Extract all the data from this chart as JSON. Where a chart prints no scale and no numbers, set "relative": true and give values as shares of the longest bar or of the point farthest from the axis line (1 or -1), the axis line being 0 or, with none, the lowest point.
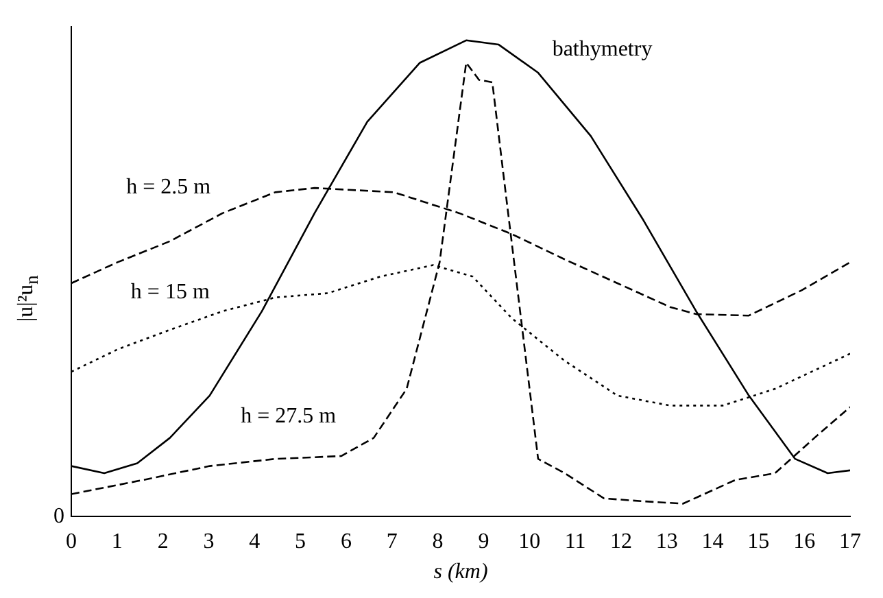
{
  "chart_data": {
    "type": "line",
    "relative": true,
    "xlabel": "s (km)",
    "ylabel": "|u|²u$_{n}$",
    "xlim": [
      0,
      17
    ],
    "xticks": [
      0,
      1,
      2,
      3,
      4,
      5,
      6,
      7,
      8,
      9,
      10,
      11,
      12,
      13,
      14,
      15,
      16,
      17
    ],
    "grid": false,
    "legend": false,
    "marker": "none",
    "annotations": [
      "0"
    ],
    "series": [
      {
        "name": "bathymetry",
        "color": "#000000",
        "line_style": "solid",
        "x": [
          0,
          0.72,
          1.44,
          2.15,
          3.02,
          4.16,
          5.31,
          6.46,
          7.61,
          8.62,
          9.33,
          10.19,
          11.34,
          12.49,
          13.64,
          14.79,
          15.8,
          16.51,
          17
        ],
        "values": [
          0.106,
          0.091,
          0.112,
          0.165,
          0.254,
          0.431,
          0.637,
          0.829,
          0.953,
          1.0,
          0.991,
          0.932,
          0.799,
          0.622,
          0.431,
          0.254,
          0.121,
          0.091,
          0.097
        ]
      },
      {
        "name": "h = 2.5 m",
        "color": "#000000",
        "line_style": "dashed",
        "x": [
          0,
          1.01,
          2.15,
          3.3,
          4.45,
          5.31,
          7.04,
          8.47,
          9.62,
          10.77,
          11.92,
          13.07,
          13.64,
          14.79,
          15.94,
          17
        ],
        "values": [
          0.49,
          0.534,
          0.578,
          0.637,
          0.681,
          0.69,
          0.681,
          0.637,
          0.593,
          0.54,
          0.49,
          0.44,
          0.425,
          0.422,
          0.475,
          0.534
        ]
      },
      {
        "name": "h = 15 m",
        "color": "#000000",
        "line_style": "dotted",
        "x": [
          0,
          1.01,
          2.15,
          3.3,
          4.45,
          5.6,
          6.75,
          7.9,
          8.76,
          9.62,
          10.77,
          11.92,
          13.07,
          14.22,
          15.36,
          17
        ],
        "values": [
          0.304,
          0.351,
          0.392,
          0.431,
          0.46,
          0.469,
          0.504,
          0.528,
          0.504,
          0.416,
          0.327,
          0.254,
          0.233,
          0.233,
          0.268,
          0.342
        ]
      },
      {
        "name": "h = 27.5 m",
        "color": "#000000",
        "line_style": "dashed",
        "x": [
          0,
          1.58,
          3.02,
          4.45,
          5.89,
          6.6,
          7.32,
          8.04,
          8.62,
          8.9,
          9.19,
          9.48,
          10.19,
          10.77,
          11.63,
          12.49,
          13.35,
          14.5,
          15.36,
          16.22,
          17
        ],
        "values": [
          0.047,
          0.077,
          0.106,
          0.121,
          0.127,
          0.165,
          0.268,
          0.534,
          0.953,
          0.917,
          0.912,
          0.681,
          0.121,
          0.091,
          0.038,
          0.032,
          0.027,
          0.077,
          0.091,
          0.165,
          0.23
        ]
      }
    ]
  }
}
